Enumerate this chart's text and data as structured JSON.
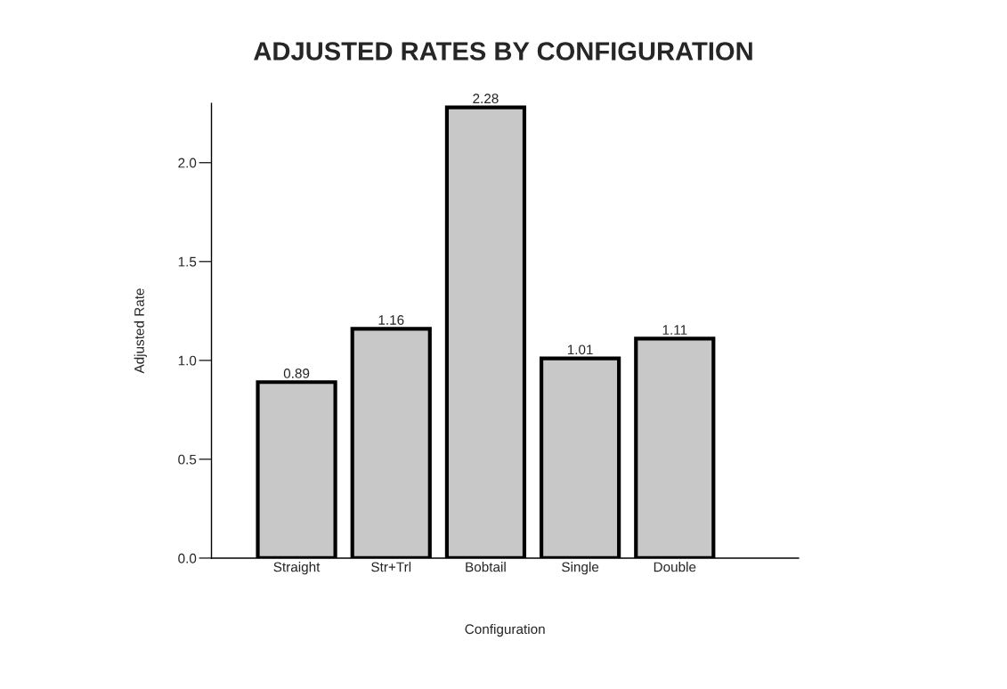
{
  "chart_data": {
    "type": "bar",
    "title": "ADJUSTED RATES BY CONFIGURATION",
    "xlabel": "Configuration",
    "ylabel": "Adjusted Rate",
    "categories": [
      "Straight",
      "Str+Trl",
      "Bobtail",
      "Single",
      "Double"
    ],
    "values": [
      0.89,
      1.16,
      2.28,
      1.01,
      1.11
    ],
    "color": "#c8c8c8",
    "ylim": [
      0,
      2.3
    ],
    "yticks": [
      {
        "value": 0,
        "label": "0.0"
      },
      0.5,
      {
        "value": 1,
        "label": "1.0"
      },
      1.5,
      {
        "value": 2,
        "label": "2.0"
      }
    ],
    "data_labels": true,
    "grid": false,
    "legend": false
  }
}
